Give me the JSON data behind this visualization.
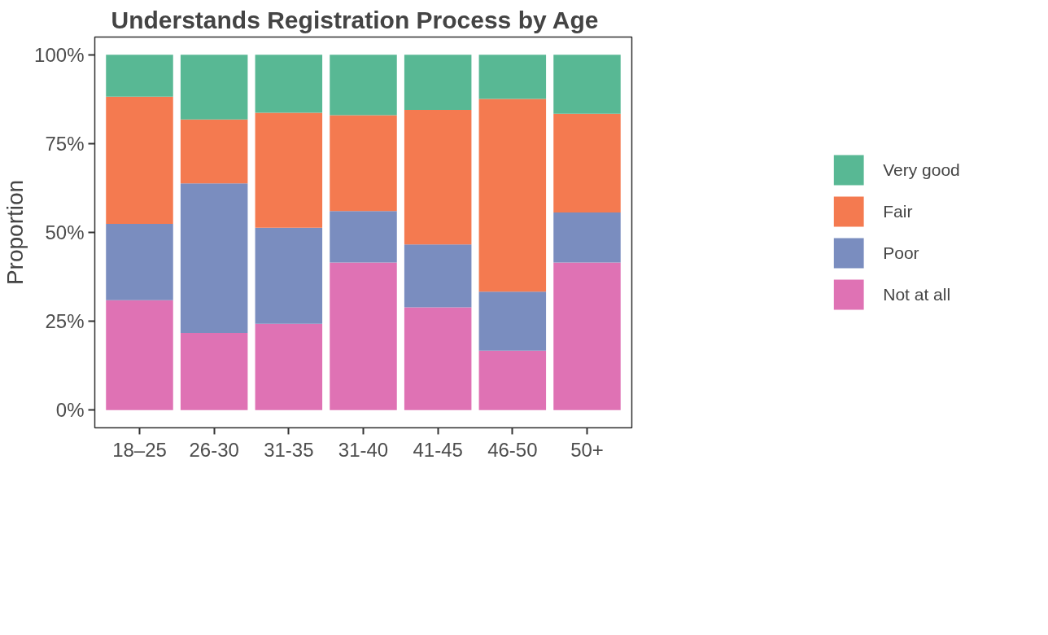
{
  "chart_data": {
    "type": "bar",
    "title": "Understands Registration Process by Age",
    "ylabel": "Proportion",
    "categories": [
      "18–25",
      "26-30",
      "31-35",
      "31-40",
      "41-45",
      "46-50",
      "50+"
    ],
    "stacked": true,
    "series": [
      {
        "name": "Not at all",
        "color": "#df72b4",
        "values": [
          30.9,
          21.7,
          24.3,
          41.5,
          28.9,
          16.7,
          41.5
        ]
      },
      {
        "name": "Poor",
        "color": "#7a8dbf",
        "values": [
          21.5,
          42.1,
          27.0,
          14.5,
          17.7,
          16.6,
          14.1
        ]
      },
      {
        "name": "Fair",
        "color": "#f47a50",
        "values": [
          35.8,
          18.0,
          32.4,
          27.0,
          37.9,
          54.3,
          27.8
        ]
      },
      {
        "name": "Very good",
        "color": "#58b894",
        "values": [
          11.8,
          18.2,
          16.3,
          17.0,
          15.5,
          12.4,
          16.6
        ]
      }
    ],
    "ylim": [
      -5,
      105
    ],
    "yticks": [
      {
        "value": 0,
        "label": "0%"
      },
      {
        "value": 25,
        "label": "25%"
      },
      {
        "value": 50,
        "label": "50%"
      },
      {
        "value": 75,
        "label": "75%"
      },
      {
        "value": 100,
        "label": "100%"
      }
    ],
    "grid": false,
    "legend": "right"
  }
}
